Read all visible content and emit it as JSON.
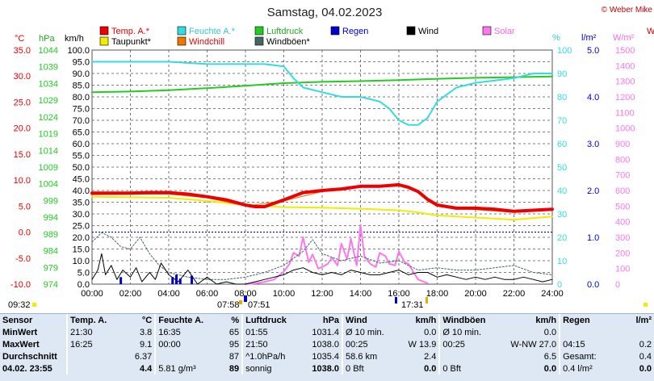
{
  "title": "Samstag, 04.02.2023",
  "credit": "© Weber Mike",
  "unit_labels": {
    "celsius": "°C",
    "hpa": "hPa",
    "kmh": "km/h",
    "percent": "%",
    "lm2": "l/m²",
    "wm2": "W/m²",
    "extra_right": "W"
  },
  "legend": [
    {
      "label": "Temp. A.*",
      "color": "#ee0000"
    },
    {
      "label": "Feuchte A.*",
      "color": "#33dddd"
    },
    {
      "label": "Luftdruck",
      "color": "#22cc22"
    },
    {
      "label": "Regen",
      "color": "#0000cc"
    },
    {
      "label": "Wind",
      "color": "#000000"
    },
    {
      "label": "Solar",
      "color": "#ff77ee"
    },
    {
      "label": "Taupunkt*",
      "color": "#eeee00"
    },
    {
      "label": "Windchill",
      "color": "#ee7700"
    },
    {
      "label": "Windböen*",
      "color": "#446666"
    }
  ],
  "axis_markers": {
    "left_time": "09:32",
    "sunrise": "07:58",
    "dawn": "07:51",
    "sunset": "17:31"
  },
  "chart_data": {
    "type": "line",
    "x_ticks": [
      "00:00",
      "02:00",
      "04:00",
      "06:00",
      "08:00",
      "10:00",
      "12:00",
      "14:00",
      "16:00",
      "18:00",
      "20:00",
      "22:00",
      "24:00"
    ],
    "x_range_hours": [
      0,
      24
    ],
    "axes": {
      "temperature_c": {
        "ticks": [
          "35.0",
          "30.0",
          "25.0",
          "20.0",
          "15.0",
          "10.0",
          "5.0",
          "0.0",
          "-5.0",
          "-10.0"
        ],
        "range": [
          -10,
          35
        ],
        "color": "#ee0000"
      },
      "pressure_hpa": {
        "ticks": [
          "1044",
          "1039",
          "1034",
          "1029",
          "1024",
          "1019",
          "1014",
          "1009",
          "1004",
          "999",
          "994",
          "989",
          "984",
          "979",
          "974"
        ],
        "range": [
          974,
          1044
        ],
        "color": "#22cc22"
      },
      "wind_kmh": {
        "ticks": [
          "100.0",
          "95.0",
          "90.0",
          "85.0",
          "80.0",
          "75.0",
          "70.0",
          "65.0",
          "60.0",
          "55.0",
          "50.0",
          "45.0",
          "40.0",
          "35.0",
          "30.0",
          "25.0",
          "20.0",
          "15.0",
          "10.0",
          "5.0",
          "0.0"
        ],
        "range": [
          0,
          100
        ],
        "color": "#000000"
      },
      "humidity_pct": {
        "ticks": [
          "100",
          "90",
          "80",
          "70",
          "60",
          "50",
          "40",
          "30",
          "20",
          "10",
          "0"
        ],
        "range": [
          0,
          100
        ],
        "color": "#33dddd"
      },
      "rain_lm2": {
        "ticks": [
          "5.0",
          "4.0",
          "3.0",
          "2.0",
          "1.0",
          "0.0"
        ],
        "range": [
          0,
          5
        ],
        "color": "#0000cc"
      },
      "solar_wm2": {
        "ticks": [
          "1500",
          "1400",
          "1300",
          "1200",
          "1100",
          "1000",
          "900",
          "800",
          "700",
          "600",
          "500",
          "400",
          "300",
          "200",
          "100",
          "0"
        ],
        "range": [
          0,
          1500
        ],
        "color": "#ff77ee"
      }
    },
    "series": [
      {
        "name": "Temp. A.*",
        "axis": "temperature_c",
        "color": "#ee0000",
        "width": 4,
        "x": [
          0,
          2,
          3,
          4,
          5,
          6,
          7,
          8,
          8.5,
          9,
          10,
          11,
          12,
          13,
          14,
          15,
          16,
          16.5,
          17,
          17.5,
          18,
          19,
          20,
          21,
          22,
          23,
          24
        ],
        "y": [
          7.5,
          7.5,
          7.6,
          7.6,
          7.3,
          6.8,
          6.2,
          5.2,
          4.9,
          4.9,
          6.2,
          7.6,
          8.0,
          8.3,
          8.8,
          8.8,
          9.1,
          8.6,
          7.8,
          6.3,
          5.2,
          4.6,
          4.6,
          4.4,
          4.0,
          4.2,
          4.4
        ]
      },
      {
        "name": "Taupunkt*",
        "axis": "temperature_c",
        "color": "#eeee00",
        "width": 2,
        "x": [
          0,
          2,
          4,
          6,
          8,
          10,
          12,
          14,
          16,
          17,
          18,
          20,
          22,
          24
        ],
        "y": [
          6.8,
          6.7,
          6.6,
          6.0,
          5.2,
          4.8,
          4.7,
          4.5,
          4.2,
          3.8,
          3.2,
          2.8,
          2.4,
          3.0
        ]
      },
      {
        "name": "Windchill",
        "axis": "temperature_c",
        "color": "#ee7700",
        "width": 1,
        "x": [
          0,
          2,
          4,
          6,
          8,
          10,
          12,
          14,
          16,
          16.5,
          17,
          17.5,
          18,
          20,
          22,
          24
        ],
        "y": [
          7.2,
          7.3,
          7.3,
          6.6,
          5.0,
          6.0,
          7.8,
          8.6,
          8.9,
          8.4,
          7.6,
          6.0,
          5.0,
          4.3,
          3.8,
          4.2
        ]
      },
      {
        "name": "Feuchte A.*",
        "axis": "humidity_pct",
        "color": "#33dddd",
        "width": 2,
        "x": [
          0,
          2,
          4,
          6,
          8,
          9,
          10,
          10.5,
          11,
          12,
          13,
          14,
          14.5,
          15,
          15.5,
          16,
          16.5,
          17,
          17.5,
          18,
          19,
          20,
          21,
          22,
          23,
          24
        ],
        "y": [
          95,
          95,
          95,
          94,
          94,
          94,
          93,
          88,
          84,
          82,
          80,
          80,
          79,
          78,
          75,
          70,
          68,
          68,
          71,
          78,
          84,
          86,
          87,
          88,
          90,
          90
        ]
      },
      {
        "name": "Luftdruck",
        "axis": "pressure_hpa",
        "color": "#22cc22",
        "width": 2,
        "x": [
          0,
          2,
          4,
          6,
          8,
          10,
          12,
          14,
          16,
          18,
          20,
          22,
          24
        ],
        "y": [
          1031.4,
          1031.6,
          1032.0,
          1032.6,
          1033.3,
          1034.1,
          1034.5,
          1034.7,
          1035.0,
          1035.4,
          1035.7,
          1035.9,
          1036.1
        ]
      },
      {
        "name": "Windböen*",
        "axis": "wind_kmh",
        "color": "#446666",
        "width": 1,
        "dashed": true,
        "x": [
          0,
          0.5,
          1,
          1.5,
          2,
          2.5,
          3,
          3.5,
          4,
          5,
          6,
          7,
          8,
          9,
          10,
          11,
          11.5,
          12,
          13,
          14,
          15,
          16,
          17,
          18,
          19,
          20,
          21,
          22,
          23,
          24
        ],
        "y": [
          18,
          22,
          20,
          16,
          15,
          20,
          13,
          8,
          5,
          3,
          2,
          2,
          3,
          5,
          8,
          14,
          19,
          13,
          10,
          12,
          9,
          10,
          6,
          7,
          6,
          6,
          7,
          8,
          5,
          4
        ]
      },
      {
        "name": "Wind",
        "axis": "wind_kmh",
        "color": "#000000",
        "width": 1,
        "x": [
          0,
          0.3,
          0.5,
          0.7,
          1,
          1.3,
          1.6,
          2,
          2.3,
          2.6,
          3,
          3.3,
          3.6,
          4,
          4.5,
          5,
          5.5,
          6,
          6.5,
          7,
          7.5,
          8,
          8.5,
          9,
          9.5,
          10,
          10.5,
          11,
          11.5,
          12,
          12.5,
          13,
          13.5,
          14,
          14.5,
          15,
          15.5,
          16,
          16.5,
          17,
          17.5,
          18,
          18.5,
          19,
          19.5,
          20,
          20.5,
          21,
          21.5,
          22,
          22.5,
          23,
          23.5,
          24
        ],
        "y": [
          2,
          6,
          13,
          4,
          8,
          2,
          6,
          3,
          7,
          1,
          5,
          2,
          9,
          4,
          1,
          6,
          0,
          3,
          0,
          1,
          0,
          0,
          1,
          2,
          3,
          4,
          6,
          7,
          5,
          4,
          5,
          4,
          6,
          5,
          4,
          4,
          5,
          6,
          4,
          5,
          5,
          3,
          4,
          3,
          2,
          3,
          2,
          3,
          2,
          2,
          3,
          2,
          1,
          2
        ]
      },
      {
        "name": "Solar",
        "axis": "solar_wm2",
        "color": "#ff77ee",
        "width": 2,
        "x": [
          8.0,
          8.5,
          9.0,
          9.5,
          10.0,
          10.3,
          10.5,
          10.8,
          11.0,
          11.3,
          11.5,
          11.8,
          12.0,
          12.3,
          12.5,
          12.8,
          13.0,
          13.3,
          13.5,
          13.8,
          14.0,
          14.2,
          14.5,
          14.8,
          15.0,
          15.3,
          15.5,
          15.8,
          16.0,
          16.3,
          16.5,
          16.8,
          17.0,
          17.5
        ],
        "y": [
          0,
          5,
          15,
          30,
          80,
          130,
          200,
          180,
          300,
          140,
          190,
          100,
          110,
          130,
          170,
          120,
          260,
          160,
          290,
          120,
          380,
          180,
          130,
          110,
          200,
          180,
          130,
          120,
          210,
          140,
          130,
          70,
          30,
          5
        ]
      },
      {
        "name": "Regen",
        "axis": "rain_lm2",
        "color": "#0000cc",
        "type": "bar",
        "x": [
          1.5,
          4.2,
          4.4,
          4.6,
          5.2
        ],
        "y": [
          0.15,
          0.15,
          0.2,
          0.12,
          0.18
        ]
      }
    ],
    "reference_lines": [
      {
        "axis": "temperature_c",
        "value": 0.0,
        "style": "dotted",
        "color": "#0000cc"
      }
    ],
    "grid": true,
    "legend_position": "top"
  },
  "stats_table": {
    "sensor_header": "Sensor",
    "row_labels": [
      "MinWert",
      "MaxWert",
      "Durchschnitt"
    ],
    "current_row_label": "04.02. 23:55",
    "groups": [
      {
        "header": "Temp. A.",
        "unit": "°C",
        "rows": [
          [
            "21:30",
            "3.8"
          ],
          [
            "16:25",
            "9.1"
          ],
          [
            "",
            "6.37"
          ]
        ],
        "current": [
          "",
          "4.4"
        ]
      },
      {
        "header": "Feuchte A.",
        "unit": "%",
        "rows": [
          [
            "16:35",
            "65"
          ],
          [
            "00:00",
            "95"
          ],
          [
            "",
            "87"
          ]
        ],
        "current": [
          "5.81 g/m³",
          "89"
        ]
      },
      {
        "header": "Luftdruck",
        "unit": "hPa",
        "rows": [
          [
            "01:55",
            "1031.4"
          ],
          [
            "21:50",
            "1038.0"
          ],
          [
            "^1.0hPa/h",
            "1035.4"
          ]
        ],
        "current": [
          "sonnig",
          "1038.0"
        ]
      },
      {
        "header": "Wind",
        "unit": "km/h",
        "rows": [
          [
            "Ø 10 min.",
            "0.0"
          ],
          [
            "00:25",
            "W 13.9"
          ],
          [
            "58.6 km",
            "2.4"
          ]
        ],
        "current": [
          "0 Bft",
          "0.0"
        ]
      },
      {
        "header": "Windböen",
        "unit": "km/h",
        "rows": [
          [
            "Ø 10 min.",
            "0.0"
          ],
          [
            "00:25",
            "W-NW 27.0"
          ],
          [
            "",
            "6.5"
          ]
        ],
        "current": [
          "0 Bft",
          "0.0"
        ]
      },
      {
        "header": "Regen",
        "unit": "l/m²",
        "rows": [
          [
            "",
            ""
          ],
          [
            "04:15",
            "0.2"
          ],
          [
            "Gesamt:",
            "0.4"
          ]
        ],
        "current": [
          "0.4 l/m²",
          "0.0"
        ]
      }
    ]
  }
}
